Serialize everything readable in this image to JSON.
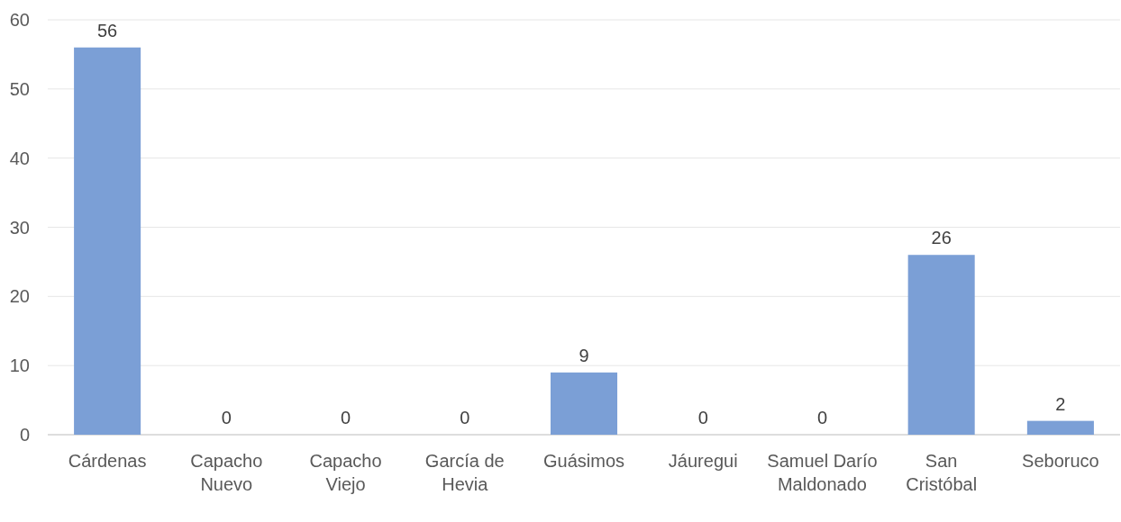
{
  "chart_data": {
    "type": "bar",
    "categories": [
      "Cárdenas",
      "Capacho Nuevo",
      "Capacho Viejo",
      "García de Hevia",
      "Guásimos",
      "Jáuregui",
      "Samuel Darío Maldonado",
      "San Cristóbal",
      "Seboruco"
    ],
    "values": [
      56,
      0,
      0,
      0,
      9,
      0,
      0,
      26,
      2
    ],
    "color": "#7b9fd6",
    "ylim": [
      0,
      60
    ],
    "yticks": [
      0,
      10,
      20,
      30,
      40,
      50,
      60
    ],
    "grid": "y",
    "data_labels": true
  }
}
